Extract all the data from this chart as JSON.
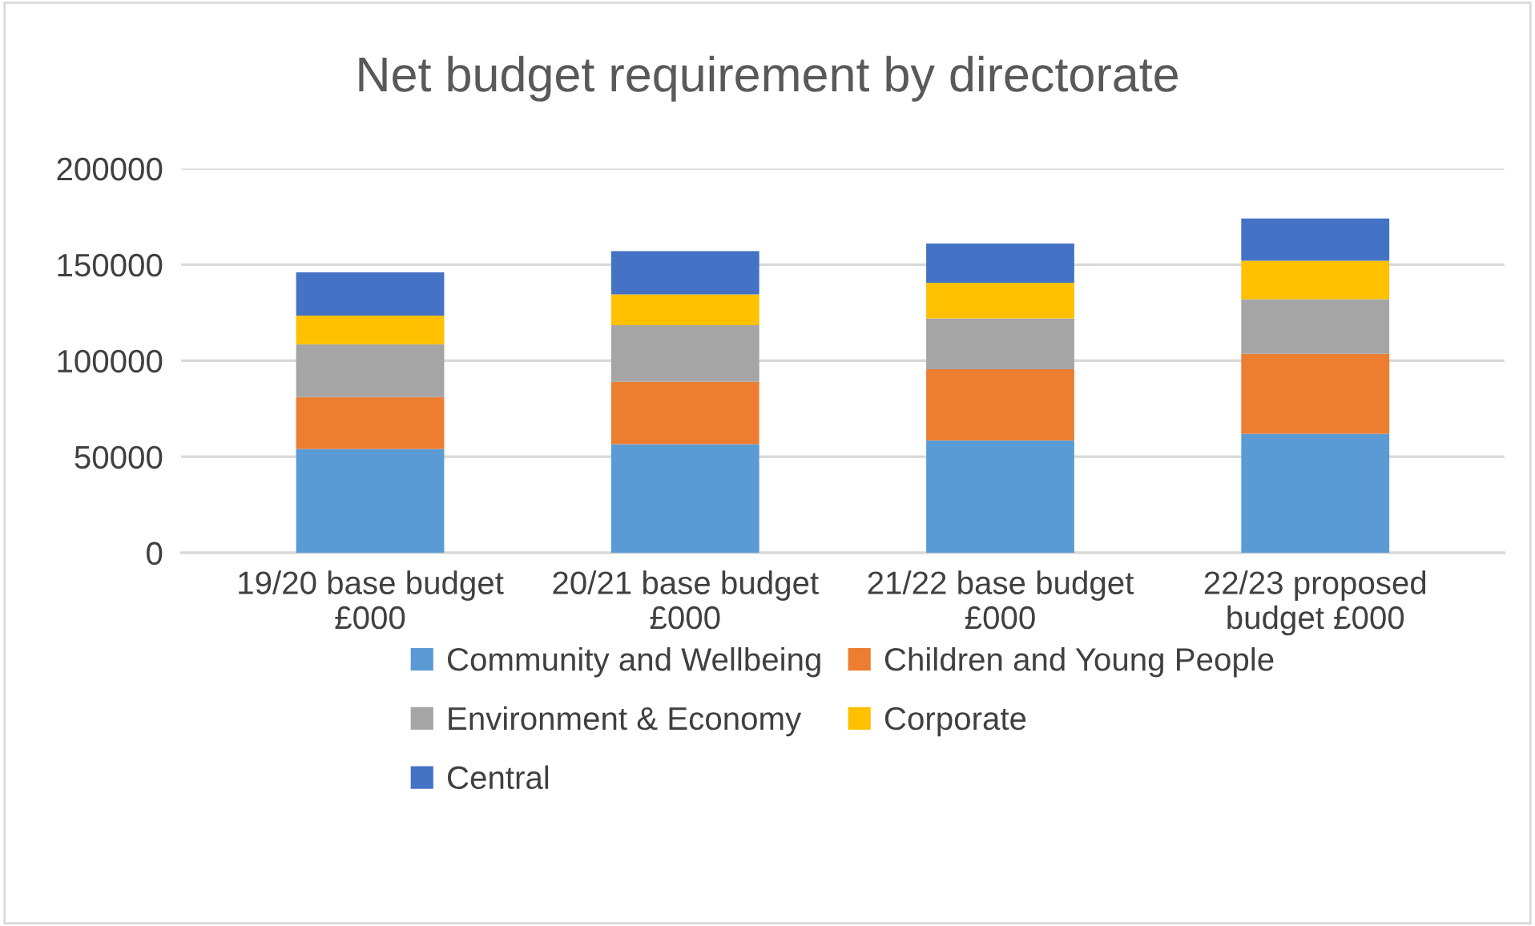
{
  "chart_data": {
    "type": "bar",
    "stacked": true,
    "title": "Net budget requirement by directorate",
    "categories": [
      "19/20 base budget £000",
      "20/21 base budget £000",
      "21/22 base budget £000",
      "22/23 proposed budget £000"
    ],
    "series": [
      {
        "name": "Community and Wellbeing",
        "color": "#5b9bd5",
        "values": [
          54000,
          56500,
          58500,
          62000
        ]
      },
      {
        "name": "Children and Young People",
        "color": "#ed7d31",
        "values": [
          27000,
          32500,
          37000,
          41500
        ]
      },
      {
        "name": "Environment & Economy",
        "color": "#a5a5a5",
        "values": [
          27500,
          29500,
          26500,
          28500
        ]
      },
      {
        "name": "Corporate",
        "color": "#ffc000",
        "values": [
          15000,
          16000,
          18500,
          20000
        ]
      },
      {
        "name": "Central",
        "color": "#4472c4",
        "values": [
          22500,
          22500,
          20500,
          22000
        ]
      }
    ],
    "ylim": [
      0,
      200000
    ],
    "yticks": [
      0,
      50000,
      100000,
      150000,
      200000
    ],
    "grid": "y",
    "legend": "bottom"
  }
}
